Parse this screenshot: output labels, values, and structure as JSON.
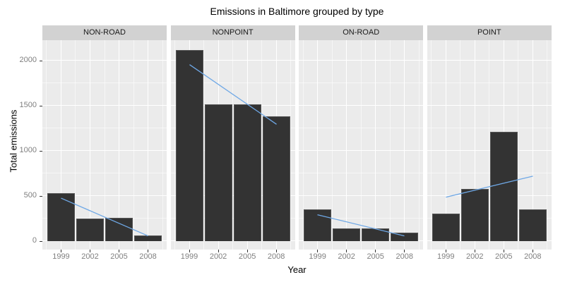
{
  "chart_data": {
    "type": "bar",
    "title": "Emissions in Baltimore grouped by type",
    "xlabel": "Year",
    "ylabel": "Total emissions",
    "categories": [
      "1999",
      "2002",
      "2005",
      "2008"
    ],
    "facets": [
      {
        "label": "NON-ROAD",
        "values": [
          522.9,
          240.8,
          248.9,
          55.8
        ]
      },
      {
        "label": "NONPOINT",
        "values": [
          2107.6,
          1509.5,
          1509.5,
          1373.2
        ]
      },
      {
        "label": "ON-ROAD",
        "values": [
          346.8,
          134.3,
          130.4,
          88.3
        ]
      },
      {
        "label": "POINT",
        "values": [
          296.8,
          569.3,
          1202.5,
          345.0
        ]
      }
    ],
    "y_ticks": [
      0,
      500,
      1000,
      1500,
      2000
    ],
    "y_minor_ticks": [
      250,
      750,
      1250,
      1750
    ],
    "ylim": [
      0,
      2225
    ],
    "grid": "white major and minor gridlines on gray panel",
    "legend": "none",
    "smooth": {
      "method": "linear-trend",
      "per_facet": true,
      "span": [
        "1999",
        "2008"
      ]
    }
  },
  "colors": {
    "bar_fill": "#333333",
    "bar_border": "#555555",
    "panel_bg": "#ebebeb",
    "strip_bg": "#d2d2d2",
    "grid_major": "#ffffff",
    "grid_minor": "rgba(255,255,255,0.55)",
    "trend_line": "#6fa8e6",
    "axis_text": "#7f7f7f",
    "tick_mark": "#333333"
  }
}
